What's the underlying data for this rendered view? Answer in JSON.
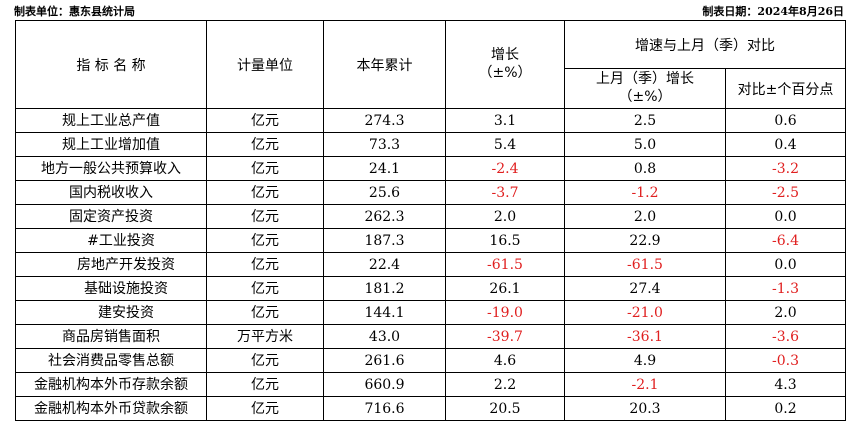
{
  "header": {
    "unit_label": "制表单位：惠东县统计局",
    "date_label": "制表日期：2024年8月26日"
  },
  "columns": {
    "indicator": "指 标 名 称",
    "unit": "计量单位",
    "ytd": "本年累计",
    "growth_l1": "增长",
    "growth_l2": "（±%）",
    "compare_group": "增速与上月（季）对比",
    "prev_l1": "上月（季）增长",
    "prev_l2": "（±%）",
    "diff": "对比±个百分点"
  },
  "rows": [
    {
      "name": "规上工业总产值",
      "indent": 0,
      "unit": "亿元",
      "ytd": "274.3",
      "growth": "3.1",
      "prev": "2.5",
      "diff": "0.6"
    },
    {
      "name": "规上工业增加值",
      "indent": 0,
      "unit": "亿元",
      "ytd": "73.3",
      "growth": "5.4",
      "prev": "5.0",
      "diff": "0.4"
    },
    {
      "name": "地方一般公共预算收入",
      "indent": 0,
      "unit": "亿元",
      "ytd": "24.1",
      "growth": "-2.4",
      "prev": "0.8",
      "diff": "-3.2"
    },
    {
      "name": "国内税收收入",
      "indent": 0,
      "unit": "亿元",
      "ytd": "25.6",
      "growth": "-3.7",
      "prev": "-1.2",
      "diff": "-2.5"
    },
    {
      "name": "固定资产投资",
      "indent": 0,
      "unit": "亿元",
      "ytd": "262.3",
      "growth": "2.0",
      "prev": "2.0",
      "diff": "0.0"
    },
    {
      "name": "#工业投资",
      "indent": 1,
      "unit": "亿元",
      "ytd": "187.3",
      "growth": "16.5",
      "prev": "22.9",
      "diff": "-6.4"
    },
    {
      "name": "房地产开发投资",
      "indent": 2,
      "unit": "亿元",
      "ytd": "22.4",
      "growth": "-61.5",
      "prev": "-61.5",
      "diff": "0.0"
    },
    {
      "name": "基础设施投资",
      "indent": 2,
      "unit": "亿元",
      "ytd": "181.2",
      "growth": "26.1",
      "prev": "27.4",
      "diff": "-1.3"
    },
    {
      "name": "建安投资",
      "indent": 2,
      "unit": "亿元",
      "ytd": "144.1",
      "growth": "-19.0",
      "prev": "-21.0",
      "diff": "2.0"
    },
    {
      "name": "商品房销售面积",
      "indent": 0,
      "unit": "万平方米",
      "ytd": "43.0",
      "growth": "-39.7",
      "prev": "-36.1",
      "diff": "-3.6"
    },
    {
      "name": "社会消费品零售总额",
      "indent": 0,
      "unit": "亿元",
      "ytd": "261.6",
      "growth": "4.6",
      "prev": "4.9",
      "diff": "-0.3"
    },
    {
      "name": "金融机构本外币存款余额",
      "indent": 0,
      "unit": "亿元",
      "ytd": "660.9",
      "growth": "2.2",
      "prev": "-2.1",
      "diff": "4.3"
    },
    {
      "name": "金融机构本外币贷款余额",
      "indent": 0,
      "unit": "亿元",
      "ytd": "716.6",
      "growth": "20.5",
      "prev": "20.3",
      "diff": "0.2"
    }
  ]
}
